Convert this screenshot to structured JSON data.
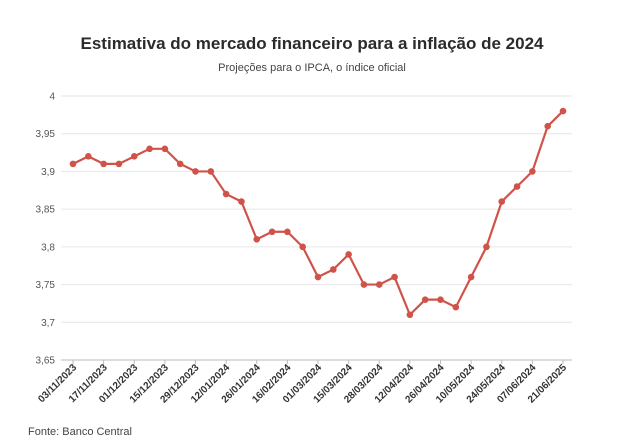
{
  "title": "Estimativa do mercado financeiro para a inflação de 2024",
  "subtitle": "Projeções para o IPCA, o índice oficial",
  "source": "Fonte: Banco Central",
  "chart_data": {
    "type": "line",
    "title": "Estimativa do mercado financeiro para a inflação de 2024",
    "subtitle": "Projeções para o IPCA, o índice oficial",
    "xlabel": "",
    "ylabel": "",
    "ylim": [
      3.65,
      4
    ],
    "y_ticks": [
      "3,65",
      "3,7",
      "3,75",
      "3,8",
      "3,85",
      "3,9",
      "3,95",
      "4"
    ],
    "y_tick_values": [
      3.65,
      3.7,
      3.75,
      3.8,
      3.85,
      3.9,
      3.95,
      4
    ],
    "x_ticks": [
      "03/11/2023",
      "17/11/2023",
      "01/12/2023",
      "15/12/2023",
      "29/12/2023",
      "12/01/2024",
      "26/01/2024",
      "16/02/2024",
      "01/03/2024",
      "15/03/2024",
      "28/03/2024",
      "12/04/2024",
      "26/04/2024",
      "10/05/2024",
      "24/05/2024",
      "07/06/2024",
      "21/06/2025"
    ],
    "grid": true,
    "legend": "none",
    "line_color": "#d0534a",
    "series": [
      {
        "values": [
          3.91,
          3.92,
          3.91,
          3.91,
          3.92,
          3.93,
          3.93,
          3.91,
          3.9,
          3.9,
          3.87,
          3.86,
          3.81,
          3.82,
          3.82,
          3.8,
          3.76,
          3.77,
          3.79,
          3.75,
          3.75,
          3.76,
          3.71,
          3.73,
          3.73,
          3.72,
          3.76,
          3.8,
          3.86,
          3.88,
          3.9,
          3.96,
          3.98
        ]
      }
    ]
  }
}
